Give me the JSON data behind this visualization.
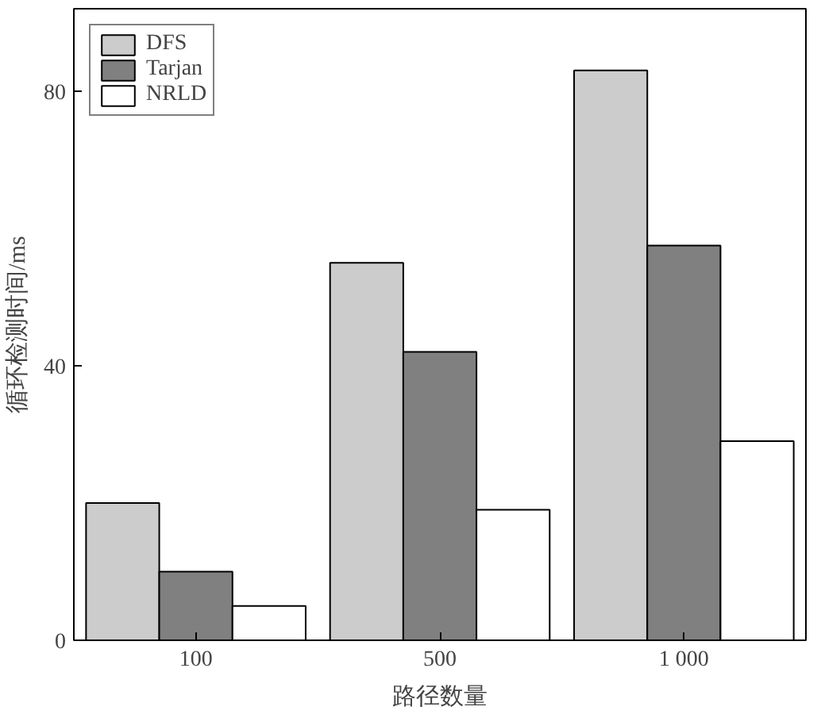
{
  "chart_data": {
    "type": "bar",
    "xlabel": "路径数量",
    "ylabel": "循环检测时间/ms",
    "categories": [
      "100",
      "500",
      "1 000"
    ],
    "series": [
      {
        "name": "DFS",
        "color": "#cccccc",
        "values": [
          20,
          55,
          83
        ]
      },
      {
        "name": "Tarjan",
        "color": "#808080",
        "values": [
          10,
          42,
          57.5
        ]
      },
      {
        "name": "NRLD",
        "color": "#ffffff",
        "values": [
          5,
          19,
          29
        ]
      }
    ],
    "ylim": [
      0,
      92
    ],
    "yticks": [
      0,
      40,
      80
    ],
    "grid": false,
    "legend": "top left"
  }
}
